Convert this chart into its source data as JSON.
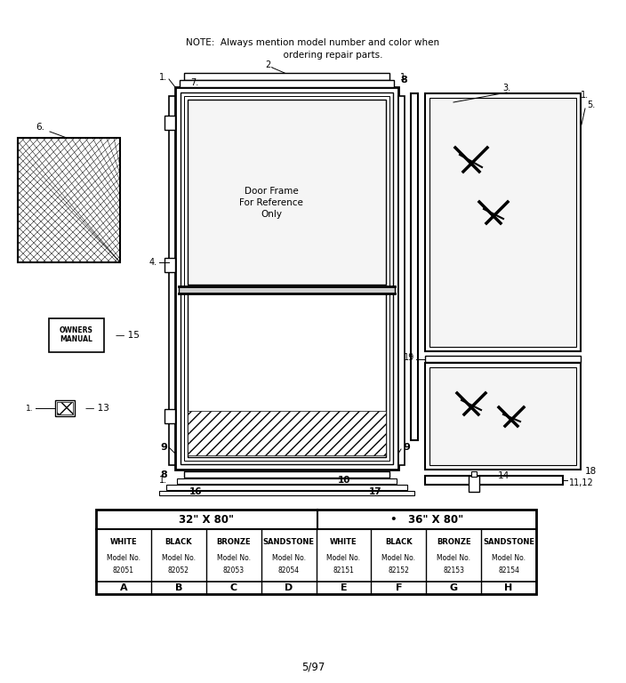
{
  "bg_color": "#ffffff",
  "note_line1": "NOTE:  Always mention model number and color when",
  "note_line2": "              ordering repair parts.",
  "footer_text": "5/97",
  "table_cols": [
    {
      "color": "WHITE",
      "model": "Model No.",
      "num": "82051",
      "letter": "A"
    },
    {
      "color": "BLACK",
      "model": "Model No.",
      "num": "82052",
      "letter": "B"
    },
    {
      "color": "BRONZE",
      "model": "Model No.",
      "num": "82053",
      "letter": "C"
    },
    {
      "color": "SANDSTONE",
      "model": "Model No.",
      "num": "82054",
      "letter": "D"
    },
    {
      "color": "WHITE",
      "model": "Model No.",
      "num": "82151",
      "letter": "E"
    },
    {
      "color": "BLACK",
      "model": "Model No.",
      "num": "82152",
      "letter": "F"
    },
    {
      "color": "BRONZE",
      "model": "Model No.",
      "num": "82153",
      "letter": "G"
    },
    {
      "color": "SANDSTONE",
      "model": "Model No.",
      "num": "82154",
      "letter": "H"
    }
  ],
  "header1": "32\" X 80\"",
  "header2": "•   36\" X 80\""
}
